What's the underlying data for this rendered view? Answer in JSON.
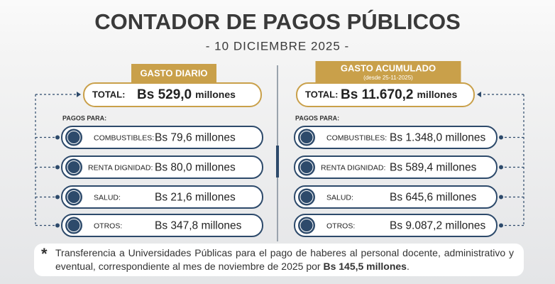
{
  "header": {
    "title": "CONTADOR DE PAGOS PÚBLICOS",
    "date": "- 10 DICIEMBRE 2025 -"
  },
  "panels": [
    {
      "title": "GASTO DIARIO",
      "total_label": "TOTAL:",
      "total_value": "Bs 529,0",
      "total_unit": "millones",
      "section_label": "PAGOS PARA:",
      "items": [
        {
          "label": "COMBUSTIBLES:",
          "value": "Bs 79,6 millones"
        },
        {
          "label": "RENTA DIGNIDAD:",
          "value": "Bs 80,0 millones"
        },
        {
          "label": "SALUD:",
          "value": "Bs 21,6 millones"
        },
        {
          "label": "OTROS:",
          "value": "Bs 347,8 millones"
        }
      ]
    },
    {
      "title": "GASTO ACUMULADO",
      "subtitle": "(desde 25-11-2025)",
      "total_label": "TOTAL:",
      "total_value": "Bs 11.670,2",
      "total_unit": "millones",
      "section_label": "PAGOS PARA:",
      "items": [
        {
          "label": "COMBUSTIBLES:",
          "value": "Bs 1.348,0 millones"
        },
        {
          "label": "RENTA DIGNIDAD:",
          "value": "Bs 589,4 millones"
        },
        {
          "label": "SALUD:",
          "value": "Bs 645,6 millones"
        },
        {
          "label": "OTROS:",
          "value": "Bs 9.087,2 millones"
        }
      ]
    }
  ],
  "footnote": {
    "marker": "*",
    "text": "Transferencia a Universidades Públicas para el pago de haberes al personal docente, administrativo y eventual, correspondiente al mes de noviembre de 2025 por",
    "emphasis": "Bs 145,5 millones",
    "end": "."
  }
}
